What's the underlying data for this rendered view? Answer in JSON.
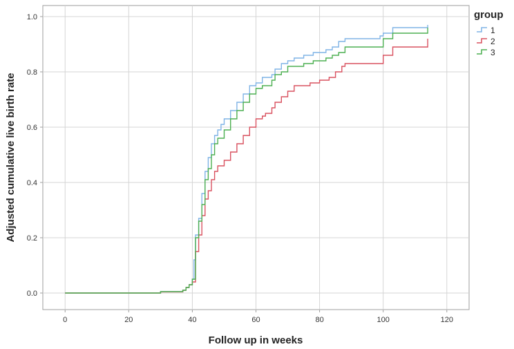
{
  "chart_data": {
    "type": "line",
    "step": true,
    "xlabel": "Follow up in weeks",
    "ylabel": "Adjusted cumulative live birth rate",
    "xlim": [
      -7,
      127
    ],
    "ylim": [
      -0.06,
      1.04
    ],
    "xticks": [
      0,
      20,
      40,
      60,
      80,
      100,
      120
    ],
    "yticks": [
      0.0,
      0.2,
      0.4,
      0.6,
      0.8,
      1.0
    ],
    "xtick_labels": [
      "0",
      "20",
      "40",
      "60",
      "80",
      "100",
      "120"
    ],
    "ytick_labels": [
      "0.0",
      "0.2",
      "0.4",
      "0.6",
      "0.8",
      "1.0"
    ],
    "grid": true,
    "legend": {
      "title": "group",
      "position": "top-right-outside"
    },
    "series": [
      {
        "name": "1",
        "color": "#7fb3e6",
        "points": [
          [
            0,
            0
          ],
          [
            30,
            0.002
          ],
          [
            30,
            0.005
          ],
          [
            36,
            0.005
          ],
          [
            37,
            0.01
          ],
          [
            38,
            0.02
          ],
          [
            39,
            0.03
          ],
          [
            40,
            0.05
          ],
          [
            40.5,
            0.12
          ],
          [
            41,
            0.21
          ],
          [
            42,
            0.27
          ],
          [
            43,
            0.36
          ],
          [
            44,
            0.44
          ],
          [
            45,
            0.49
          ],
          [
            46,
            0.54
          ],
          [
            47,
            0.57
          ],
          [
            48,
            0.59
          ],
          [
            49,
            0.61
          ],
          [
            50,
            0.63
          ],
          [
            52,
            0.66
          ],
          [
            54,
            0.69
          ],
          [
            56,
            0.72
          ],
          [
            58,
            0.75
          ],
          [
            60,
            0.76
          ],
          [
            62,
            0.78
          ],
          [
            65,
            0.79
          ],
          [
            66,
            0.81
          ],
          [
            68,
            0.83
          ],
          [
            70,
            0.84
          ],
          [
            72,
            0.85
          ],
          [
            75,
            0.86
          ],
          [
            78,
            0.87
          ],
          [
            82,
            0.88
          ],
          [
            84,
            0.89
          ],
          [
            86,
            0.91
          ],
          [
            88,
            0.92
          ],
          [
            99,
            0.93
          ],
          [
            100,
            0.94
          ],
          [
            103,
            0.96
          ],
          [
            114,
            0.97
          ]
        ]
      },
      {
        "name": "2",
        "color": "#d9505f",
        "points": [
          [
            0,
            0
          ],
          [
            30,
            0.002
          ],
          [
            30,
            0.004
          ],
          [
            36,
            0.004
          ],
          [
            37,
            0.01
          ],
          [
            38,
            0.02
          ],
          [
            39,
            0.03
          ],
          [
            40,
            0.04
          ],
          [
            41,
            0.15
          ],
          [
            42,
            0.21
          ],
          [
            43,
            0.28
          ],
          [
            44,
            0.34
          ],
          [
            45,
            0.37
          ],
          [
            46,
            0.41
          ],
          [
            47,
            0.44
          ],
          [
            48,
            0.46
          ],
          [
            50,
            0.48
          ],
          [
            52,
            0.51
          ],
          [
            54,
            0.54
          ],
          [
            56,
            0.57
          ],
          [
            58,
            0.6
          ],
          [
            60,
            0.63
          ],
          [
            62,
            0.64
          ],
          [
            63,
            0.65
          ],
          [
            65,
            0.67
          ],
          [
            66,
            0.69
          ],
          [
            68,
            0.71
          ],
          [
            70,
            0.73
          ],
          [
            72,
            0.75
          ],
          [
            77,
            0.76
          ],
          [
            80,
            0.77
          ],
          [
            83,
            0.78
          ],
          [
            85,
            0.8
          ],
          [
            87,
            0.82
          ],
          [
            88,
            0.83
          ],
          [
            100,
            0.86
          ],
          [
            103,
            0.89
          ],
          [
            114,
            0.92
          ]
        ]
      },
      {
        "name": "3",
        "color": "#4caf50",
        "points": [
          [
            0,
            0
          ],
          [
            30,
            0.002
          ],
          [
            30,
            0.005
          ],
          [
            36,
            0.005
          ],
          [
            37,
            0.01
          ],
          [
            38,
            0.02
          ],
          [
            39,
            0.03
          ],
          [
            40,
            0.05
          ],
          [
            41,
            0.2
          ],
          [
            42,
            0.26
          ],
          [
            43,
            0.32
          ],
          [
            44,
            0.41
          ],
          [
            45,
            0.45
          ],
          [
            46,
            0.5
          ],
          [
            47,
            0.54
          ],
          [
            48,
            0.56
          ],
          [
            50,
            0.59
          ],
          [
            52,
            0.63
          ],
          [
            54,
            0.66
          ],
          [
            56,
            0.69
          ],
          [
            58,
            0.72
          ],
          [
            60,
            0.74
          ],
          [
            62,
            0.75
          ],
          [
            65,
            0.77
          ],
          [
            66,
            0.79
          ],
          [
            68,
            0.8
          ],
          [
            70,
            0.82
          ],
          [
            75,
            0.83
          ],
          [
            78,
            0.84
          ],
          [
            82,
            0.85
          ],
          [
            84,
            0.86
          ],
          [
            86,
            0.87
          ],
          [
            88,
            0.89
          ],
          [
            100,
            0.92
          ],
          [
            103,
            0.94
          ],
          [
            114,
            0.96
          ]
        ]
      }
    ]
  }
}
